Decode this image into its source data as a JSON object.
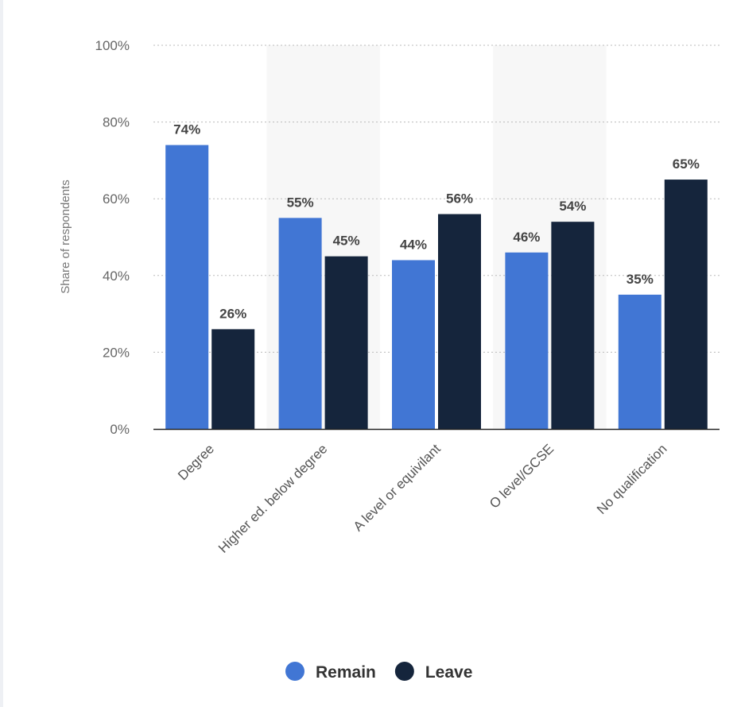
{
  "chart_data": {
    "type": "bar",
    "title": "",
    "xlabel": "",
    "ylabel": "Share of respondents",
    "ylim": [
      0,
      100
    ],
    "yticks": [
      "0%",
      "20%",
      "40%",
      "60%",
      "80%",
      "100%"
    ],
    "grid": true,
    "categories": [
      "Degree",
      "Higher ed. below degree",
      "A level or equivilant",
      "O level/GCSE",
      "No qualification"
    ],
    "series": [
      {
        "name": "Remain",
        "color": "#4176d4",
        "values": [
          74,
          55,
          44,
          46,
          35
        ]
      },
      {
        "name": "Leave",
        "color": "#15253c",
        "values": [
          26,
          45,
          56,
          54,
          65
        ]
      }
    ],
    "legend": "bottom-center",
    "band_color": "#f7f7f7"
  }
}
